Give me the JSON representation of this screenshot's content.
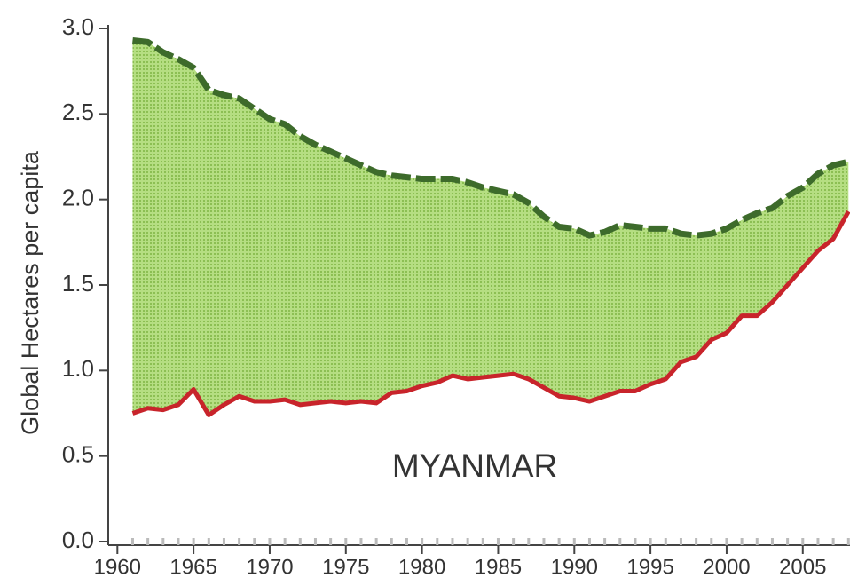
{
  "chart_data": {
    "type": "area-gap",
    "y_label": "Global Hectares per capita",
    "annotation": "MYANMAR",
    "x": [
      1961,
      1962,
      1963,
      1964,
      1965,
      1966,
      1967,
      1968,
      1969,
      1970,
      1971,
      1972,
      1973,
      1974,
      1975,
      1976,
      1977,
      1978,
      1979,
      1980,
      1981,
      1982,
      1983,
      1984,
      1985,
      1986,
      1987,
      1988,
      1989,
      1990,
      1991,
      1992,
      1993,
      1994,
      1995,
      1996,
      1997,
      1998,
      1999,
      2000,
      2001,
      2002,
      2003,
      2004,
      2005,
      2006,
      2007,
      2008
    ],
    "series": [
      {
        "color": "#3d6b2b",
        "dashed": true,
        "values": [
          2.93,
          2.92,
          2.86,
          2.82,
          2.77,
          2.64,
          2.61,
          2.59,
          2.53,
          2.47,
          2.44,
          2.37,
          2.32,
          2.28,
          2.24,
          2.2,
          2.16,
          2.14,
          2.13,
          2.12,
          2.12,
          2.12,
          2.1,
          2.07,
          2.05,
          2.03,
          1.98,
          1.9,
          1.84,
          1.83,
          1.79,
          1.81,
          1.85,
          1.84,
          1.83,
          1.83,
          1.8,
          1.79,
          1.8,
          1.83,
          1.88,
          1.92,
          1.95,
          2.02,
          2.07,
          2.15,
          2.2,
          2.22
        ]
      },
      {
        "color": "#c8242b",
        "dashed": false,
        "values": [
          0.75,
          0.78,
          0.77,
          0.8,
          0.89,
          0.74,
          0.8,
          0.85,
          0.82,
          0.82,
          0.83,
          0.8,
          0.81,
          0.82,
          0.81,
          0.82,
          0.81,
          0.87,
          0.88,
          0.91,
          0.93,
          0.97,
          0.95,
          0.96,
          0.97,
          0.98,
          0.95,
          0.9,
          0.85,
          0.84,
          0.82,
          0.85,
          0.88,
          0.88,
          0.92,
          0.95,
          1.05,
          1.08,
          1.18,
          1.22,
          1.32,
          1.32,
          1.4,
          1.5,
          1.6,
          1.7,
          1.77,
          1.93
        ]
      }
    ],
    "fill_color": "#a3d46a",
    "xlim": [
      1959.4,
      2008.1
    ],
    "xticks": [
      1960,
      1965,
      1970,
      1975,
      1980,
      1985,
      1990,
      1995,
      2000,
      2005
    ],
    "ylim": [
      0,
      3
    ],
    "yticks": [
      {
        "value": 0,
        "label": "0.0"
      },
      0.5,
      {
        "value": 1,
        "label": "1.0"
      },
      1.5,
      {
        "value": 2,
        "label": "2.0"
      },
      2.5,
      {
        "value": 3,
        "label": "3.0"
      }
    ]
  }
}
